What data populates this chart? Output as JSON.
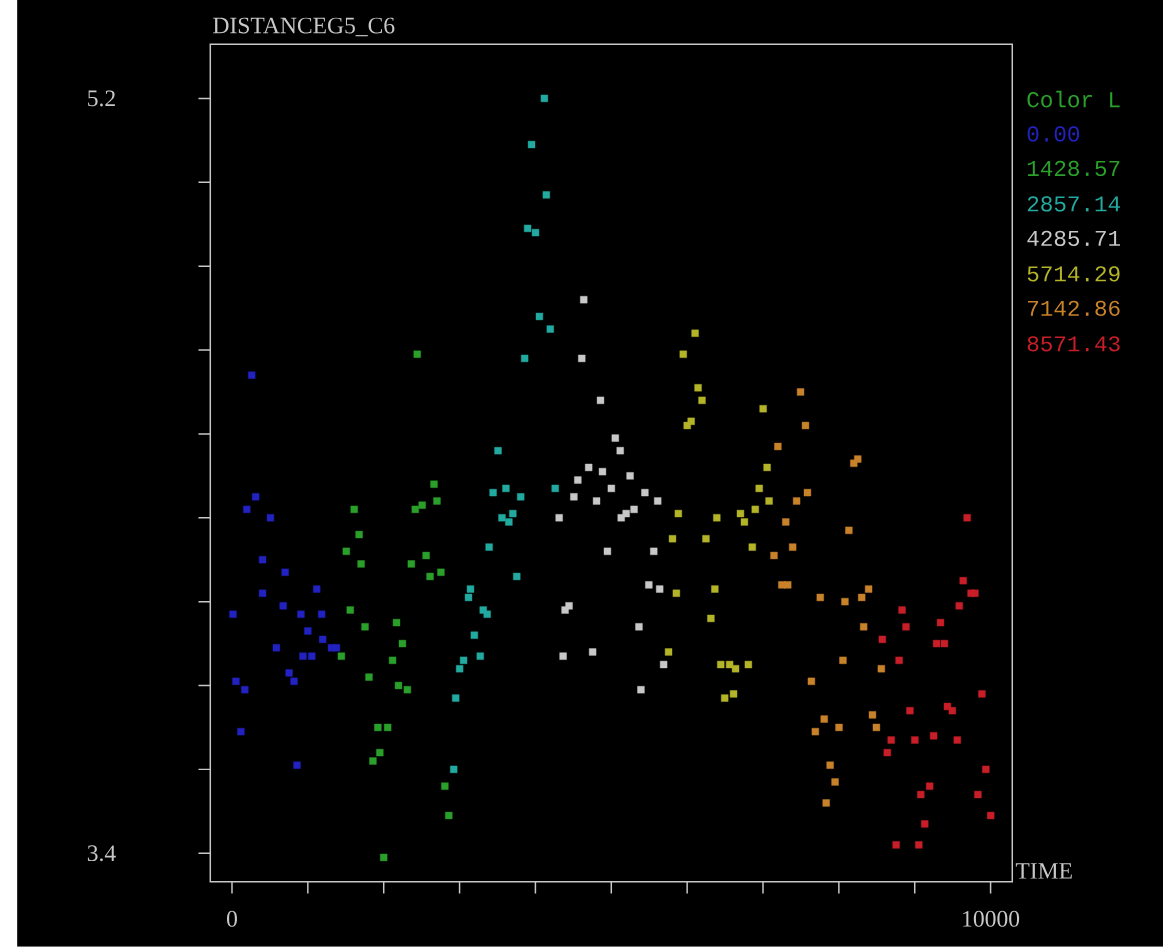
{
  "chart_data": {
    "type": "scatter",
    "title": "DISTANCEG5_C6",
    "xlabel": "TIME",
    "legend_title": "Color L",
    "legend": "top right",
    "marker": "square",
    "xlim": [
      -286,
      10286
    ],
    "ylim": [
      3.332,
      5.329
    ],
    "xticks": [
      0,
      {
        "value": 1000,
        "label": null
      },
      {
        "value": 2000,
        "label": null
      },
      {
        "value": 3000,
        "label": null
      },
      {
        "value": 4000,
        "label": null
      },
      {
        "value": 5000,
        "label": null
      },
      {
        "value": 6000,
        "label": null
      },
      {
        "value": 7000,
        "label": null
      },
      {
        "value": 8000,
        "label": null
      },
      {
        "value": 9000,
        "label": null
      },
      10000
    ],
    "yticks": [
      3.4,
      {
        "value": 3.6,
        "label": null
      },
      {
        "value": 3.8,
        "label": null
      },
      {
        "value": 4.0,
        "label": null
      },
      {
        "value": 4.2,
        "label": null
      },
      {
        "value": 4.4,
        "label": null
      },
      {
        "value": 4.6,
        "label": null
      },
      {
        "value": 4.8,
        "label": null
      },
      {
        "value": 5.0,
        "label": null
      },
      5.2
    ],
    "series": [
      {
        "name": "0.00",
        "color": "#2222c0",
        "x": [
          260,
          312,
          195,
          507,
          403,
          701,
          1117,
          403,
          13,
          675,
          909,
          1182,
          1000,
          1195,
          585,
          935,
          1052,
          1312,
          1377,
          753,
          818,
          52,
          169,
          117,
          857
        ],
        "values": [
          4.54,
          4.25,
          4.22,
          4.2,
          4.1,
          4.07,
          4.03,
          4.02,
          3.97,
          3.99,
          3.97,
          3.97,
          3.93,
          3.91,
          3.89,
          3.87,
          3.87,
          3.89,
          3.89,
          3.83,
          3.81,
          3.81,
          3.79,
          3.69,
          3.61
        ]
      },
      {
        "name": "1428.57",
        "color": "#2aa02a",
        "x": [
          2442,
          2663,
          2702,
          2507,
          2416,
          1611,
          1676,
          1507,
          1702,
          2364,
          2559,
          2611,
          2754,
          1559,
          1754,
          2169,
          1442,
          2247,
          2117,
          1806,
          2195,
          2312,
          1923,
          2052,
          1949,
          1858,
          2806,
          2858,
          2000
        ],
        "values": [
          4.59,
          4.28,
          4.24,
          4.23,
          4.22,
          4.22,
          4.16,
          4.12,
          4.09,
          4.09,
          4.11,
          4.06,
          4.07,
          3.98,
          3.94,
          3.95,
          3.87,
          3.9,
          3.86,
          3.82,
          3.8,
          3.79,
          3.7,
          3.7,
          3.64,
          3.62,
          3.56,
          3.49,
          3.39
        ]
      },
      {
        "name": "2857.14",
        "color": "#22aaa0",
        "x": [
          4118,
          3949,
          4144,
          3897,
          4001,
          4053,
          4196,
          3858,
          3507,
          3442,
          3611,
          3806,
          4261,
          3559,
          3702,
          3650,
          3390,
          3754,
          3312,
          3364,
          3273,
          3144,
          3118,
          3195,
          3053,
          3001,
          2949,
          2923
        ],
        "values": [
          5.2,
          5.09,
          4.97,
          4.89,
          4.88,
          4.68,
          4.65,
          4.58,
          4.36,
          4.26,
          4.27,
          4.25,
          4.27,
          4.2,
          4.21,
          4.19,
          4.13,
          4.06,
          3.98,
          3.97,
          3.87,
          4.03,
          4.01,
          3.92,
          3.86,
          3.84,
          3.77,
          3.6
        ]
      },
      {
        "name": "4285.71",
        "color": "#c8c8c8",
        "x": [
          4637,
          4611,
          4858,
          5053,
          5118,
          4702,
          4884,
          5248,
          4559,
          5001,
          4507,
          4806,
          5443,
          5612,
          5300,
          5196,
          5131,
          4313,
          4949,
          5560,
          5495,
          5638,
          4443,
          4391,
          5365,
          4754,
          4365,
          5690,
          5391
        ],
        "values": [
          4.72,
          4.58,
          4.48,
          4.39,
          4.36,
          4.32,
          4.31,
          4.3,
          4.29,
          4.27,
          4.25,
          4.24,
          4.26,
          4.24,
          4.22,
          4.21,
          4.2,
          4.2,
          4.12,
          4.12,
          4.04,
          4.03,
          3.99,
          3.98,
          3.94,
          3.88,
          3.87,
          3.85,
          3.79
        ]
      },
      {
        "name": "5714.29",
        "color": "#b4b428",
        "x": [
          6105,
          5949,
          6144,
          6196,
          6053,
          6001,
          7002,
          7054,
          6950,
          7080,
          6898,
          5884,
          5807,
          6391,
          6703,
          6755,
          6859,
          6248,
          5858,
          6365,
          6313,
          5755,
          6443,
          6560,
          6638,
          6807,
          6495,
          6612
        ],
        "values": [
          4.64,
          4.59,
          4.51,
          4.48,
          4.43,
          4.42,
          4.46,
          4.32,
          4.27,
          4.24,
          4.22,
          4.21,
          4.15,
          4.2,
          4.21,
          4.19,
          4.13,
          4.15,
          4.02,
          4.03,
          3.96,
          3.88,
          3.85,
          3.85,
          3.84,
          3.85,
          3.77,
          3.78
        ]
      },
      {
        "name": "7142.86",
        "color": "#c8822a",
        "x": [
          7495,
          7560,
          7196,
          8249,
          8197,
          7586,
          7443,
          7300,
          8132,
          7391,
          7145,
          7248,
          7326,
          7755,
          8080,
          8301,
          8392,
          8327,
          8054,
          8560,
          7638,
          7807,
          7690,
          8002,
          8443,
          8495,
          7885,
          7950,
          7833
        ],
        "values": [
          4.5,
          4.42,
          4.37,
          4.34,
          4.33,
          4.26,
          4.24,
          4.19,
          4.17,
          4.13,
          4.11,
          4.04,
          4.04,
          4.01,
          4.0,
          4.01,
          4.03,
          3.94,
          3.86,
          3.84,
          3.81,
          3.72,
          3.69,
          3.7,
          3.73,
          3.7,
          3.61,
          3.57,
          3.52
        ]
      },
      {
        "name": "8571.43",
        "color": "#c81e28",
        "x": [
          9691,
          9639,
          9743,
          9794,
          9587,
          8833,
          8885,
          9340,
          8573,
          9288,
          9392,
          8794,
          9886,
          8937,
          9431,
          9496,
          8690,
          9002,
          9249,
          9561,
          8638,
          9937,
          9197,
          9080,
          9833,
          10002,
          9132,
          8755,
          9054
        ],
        "values": [
          4.2,
          4.05,
          4.02,
          4.02,
          3.99,
          3.98,
          3.94,
          3.95,
          3.91,
          3.9,
          3.9,
          3.86,
          3.78,
          3.74,
          3.75,
          3.74,
          3.67,
          3.67,
          3.68,
          3.67,
          3.64,
          3.6,
          3.56,
          3.54,
          3.54,
          3.49,
          3.47,
          3.42,
          3.42
        ]
      }
    ]
  }
}
